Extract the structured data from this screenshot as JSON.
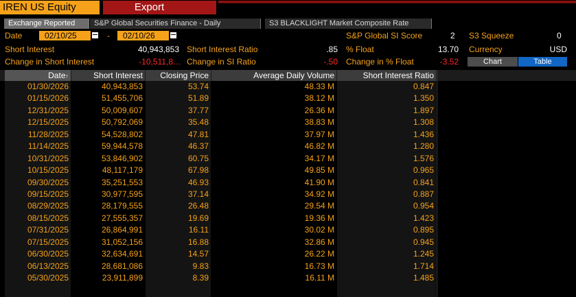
{
  "header": {
    "ticker": "IREN US Equity",
    "export_label": "Export"
  },
  "tabs": [
    {
      "label": "Exchange Reported"
    },
    {
      "label": "S&P Global Securities Finance - Daily"
    },
    {
      "label": "S3 BLACKLIGHT Market Composite Rate"
    }
  ],
  "filters": {
    "date_label": "Date",
    "start_date": "02/10/25",
    "dash": "-",
    "end_date": "02/10/26"
  },
  "stats": {
    "sp_score_label": "S&P Global SI Score",
    "sp_score_value": "2",
    "s3_squeeze_label": "S3 Squeeze",
    "s3_squeeze_value": "0",
    "short_interest_label": "Short Interest",
    "short_interest_value": "40,943,853",
    "si_ratio_label": "Short Interest Ratio",
    "si_ratio_value": ".85",
    "pct_float_label": "% Float",
    "pct_float_value": "13.70",
    "currency_label": "Currency",
    "currency_value": "USD",
    "chg_si_label": "Change in Short Interest",
    "chg_si_value": "-10,511,8…",
    "chg_ratio_label": "Change in SI Ratio",
    "chg_ratio_value": "-.50",
    "chg_float_label": "Change in % Float",
    "chg_float_value": "-3.52"
  },
  "view_toggle": {
    "chart_label": "Chart",
    "table_label": "Table"
  },
  "table": {
    "columns": [
      "Date",
      "Short Interest",
      "Closing Price",
      "Average Daily Volume",
      "Short Interest Ratio"
    ],
    "rows": [
      [
        "01/30/2026",
        "40,943,853",
        "53.74",
        "48.33 M",
        "0.847"
      ],
      [
        "01/15/2026",
        "51,455,706",
        "51.89",
        "38.12 M",
        "1.350"
      ],
      [
        "12/31/2025",
        "50,009,607",
        "37.77",
        "26.36 M",
        "1.897"
      ],
      [
        "12/15/2025",
        "50,792,069",
        "35.48",
        "38.83 M",
        "1.308"
      ],
      [
        "11/28/2025",
        "54,528,802",
        "47.81",
        "37.97 M",
        "1.436"
      ],
      [
        "11/14/2025",
        "59,944,578",
        "46.37",
        "46.82 M",
        "1.280"
      ],
      [
        "10/31/2025",
        "53,846,902",
        "60.75",
        "34.17 M",
        "1.576"
      ],
      [
        "10/15/2025",
        "48,117,179",
        "67.98",
        "49.85 M",
        "0.965"
      ],
      [
        "09/30/2025",
        "35,251,553",
        "46.93",
        "41.90 M",
        "0.841"
      ],
      [
        "09/15/2025",
        "30,977,595",
        "37.14",
        "34.92 M",
        "0.887"
      ],
      [
        "08/29/2025",
        "28,179,555",
        "26.48",
        "29.54 M",
        "0.954"
      ],
      [
        "08/15/2025",
        "27,555,357",
        "19.69",
        "19.36 M",
        "1.423"
      ],
      [
        "07/31/2025",
        "26,864,991",
        "16.11",
        "30.02 M",
        "0.895"
      ],
      [
        "07/15/2025",
        "31,052,156",
        "16.88",
        "32.86 M",
        "0.945"
      ],
      [
        "06/30/2025",
        "32,634,691",
        "14.57",
        "26.22 M",
        "1.245"
      ],
      [
        "06/13/2025",
        "28,681,086",
        "9.83",
        "16.73 M",
        "1.714"
      ],
      [
        "05/30/2025",
        "23,911,899",
        "8.39",
        "16.11 M",
        "1.485"
      ]
    ]
  },
  "colors": {
    "accent": "#f5a21a",
    "export_bg": "#a31616",
    "negative": "#ff2a2a",
    "table_btn": "#1266c4"
  }
}
